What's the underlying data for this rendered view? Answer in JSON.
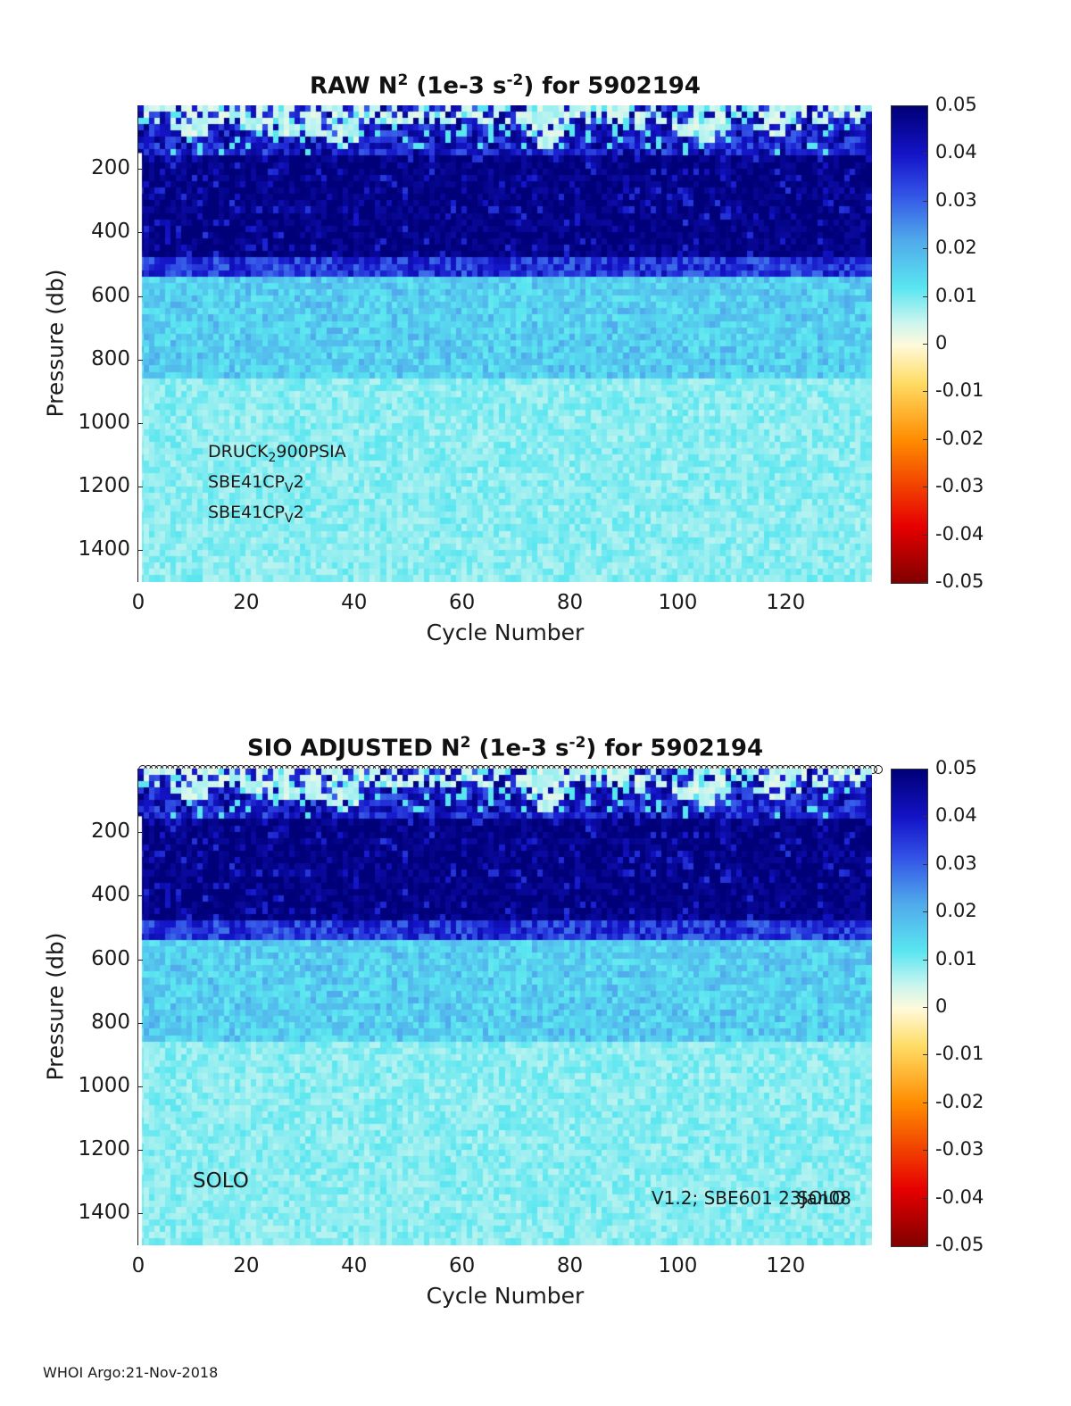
{
  "chart_data": [
    {
      "type": "heatmap",
      "title_prefix": "RAW N",
      "title_sup": "2",
      "title_mid": " (1e-3 s",
      "title_sup2": "-2",
      "title_suffix": ") for 5902194",
      "xlabel": "Cycle Number",
      "ylabel": "Pressure (db)",
      "xlim": [
        0,
        136
      ],
      "ylim": [
        1500,
        0
      ],
      "xticks": [
        "0",
        "20",
        "40",
        "60",
        "80",
        "100",
        "120"
      ],
      "yticks": [
        "200",
        "400",
        "600",
        "800",
        "1000",
        "1200",
        "1400"
      ],
      "colorbar": {
        "range": [
          -0.05,
          0.05
        ],
        "ticks": [
          "0.05",
          "0.04",
          "0.03",
          "0.02",
          "0.01",
          "0",
          "-0.01",
          "-0.02",
          "-0.03",
          "-0.04",
          "-0.05"
        ]
      },
      "layers": [
        {
          "pressure_range": [
            0,
            150
          ],
          "approx_value": 0.045,
          "note_value": 0.002
        },
        {
          "pressure_range": [
            150,
            480
          ],
          "approx_value": 0.05
        },
        {
          "pressure_range": [
            480,
            540
          ],
          "approx_value": 0.035
        },
        {
          "pressure_range": [
            540,
            850
          ],
          "approx_value": 0.015
        },
        {
          "pressure_range": [
            850,
            1500
          ],
          "approx_value": 0.009
        }
      ],
      "annotations": {
        "line1_a": "DRUCK",
        "line1_sub": "2",
        "line1_b": "900PSIA",
        "line2_a": "SBE41CP",
        "line2_sub": "V",
        "line2_b": "2",
        "line3_a": "SBE41CP",
        "line3_sub": "V",
        "line3_b": "2"
      }
    },
    {
      "type": "heatmap",
      "title_prefix": "SIO  ADJUSTED N",
      "title_sup": "2",
      "title_mid": " (1e-3 s",
      "title_sup2": "-2",
      "title_suffix": ") for 5902194",
      "xlabel": "Cycle Number",
      "ylabel": "Pressure (db)",
      "xlim": [
        0,
        136
      ],
      "ylim": [
        1500,
        0
      ],
      "xticks": [
        "0",
        "20",
        "40",
        "60",
        "80",
        "100",
        "120"
      ],
      "yticks": [
        "200",
        "400",
        "600",
        "800",
        "1000",
        "1200",
        "1400"
      ],
      "colorbar": {
        "range": [
          -0.05,
          0.05
        ],
        "ticks": [
          "0.05",
          "0.04",
          "0.03",
          "0.02",
          "0.01",
          "0",
          "-0.01",
          "-0.02",
          "-0.03",
          "-0.04",
          "-0.05"
        ]
      },
      "float_type": "SOLO",
      "version_text_1": "V1.2; SBE601 23Jan08",
      "version_text_2": "SOLO",
      "qc_markers_count": 136
    }
  ],
  "footer": "WHOI Argo:21-Nov-2018"
}
